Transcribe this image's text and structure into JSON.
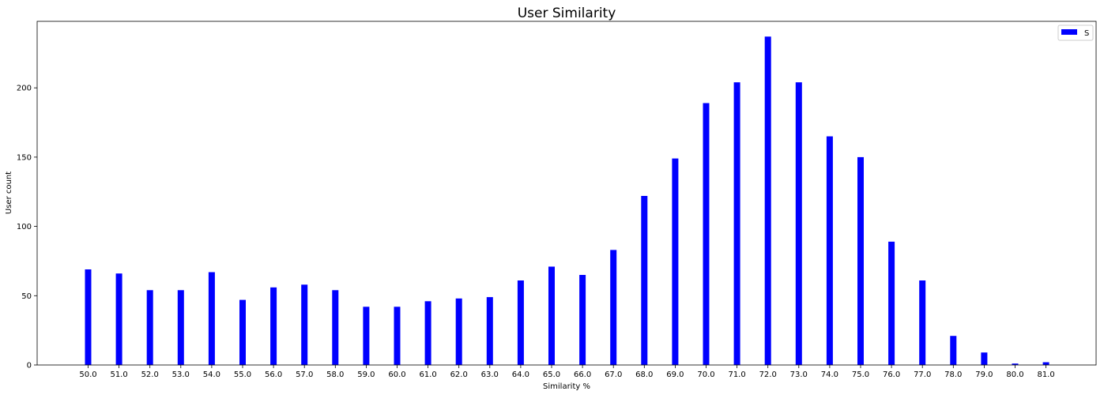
{
  "chart_data": {
    "type": "bar",
    "title": "User Similarity",
    "xlabel": "Similarity %",
    "ylabel": "User count",
    "categories": [
      "50.0",
      "51.0",
      "52.0",
      "53.0",
      "54.0",
      "55.0",
      "56.0",
      "57.0",
      "58.0",
      "59.0",
      "60.0",
      "61.0",
      "62.0",
      "63.0",
      "64.0",
      "65.0",
      "66.0",
      "67.0",
      "68.0",
      "69.0",
      "70.0",
      "71.0",
      "72.0",
      "73.0",
      "74.0",
      "75.0",
      "76.0",
      "77.0",
      "78.0",
      "79.0",
      "80.0",
      "81.0"
    ],
    "series": [
      {
        "name": "S",
        "color": "#0000ff",
        "values": [
          69,
          66,
          54,
          54,
          67,
          47,
          56,
          58,
          54,
          42,
          42,
          46,
          48,
          49,
          61,
          71,
          65,
          83,
          122,
          149,
          189,
          204,
          237,
          204,
          165,
          150,
          89,
          61,
          21,
          9,
          1,
          2
        ]
      }
    ],
    "ylim": [
      0,
      248
    ],
    "yticks": [
      0,
      50,
      100,
      150,
      200
    ],
    "legend_position": "top-right",
    "grid": false
  }
}
